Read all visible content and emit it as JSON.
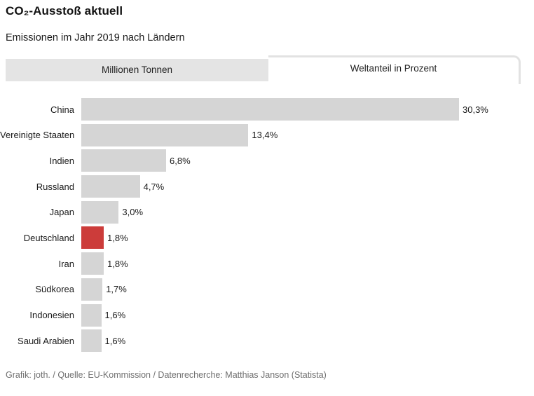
{
  "header": {
    "title": "CO₂-Ausstoß aktuell",
    "subtitle": "Emissionen im Jahr 2019 nach Ländern"
  },
  "tabs": [
    {
      "label": "Millionen Tonnen",
      "active": false
    },
    {
      "label": "Weltanteil in Prozent",
      "active": true
    }
  ],
  "chart_data": {
    "type": "bar",
    "orientation": "horizontal",
    "categories": [
      "China",
      "Vereinigte Staaten",
      "Indien",
      "Russland",
      "Japan",
      "Deutschland",
      "Iran",
      "Südkorea",
      "Indonesien",
      "Saudi Arabien"
    ],
    "values": [
      30.3,
      13.4,
      6.8,
      4.7,
      3.0,
      1.8,
      1.8,
      1.7,
      1.6,
      1.6
    ],
    "value_labels": [
      "30,3%",
      "13,4%",
      "6,8%",
      "4,7%",
      "3,0%",
      "1,8%",
      "1,8%",
      "1,7%",
      "1,6%",
      "1,6%"
    ],
    "unit": "Prozent",
    "highlight_category": "Deutschland",
    "colors": {
      "bar": "#d5d5d5",
      "highlight": "#cc3c3a"
    },
    "xlim": [
      0,
      30.3
    ],
    "grid": false,
    "legend": false
  },
  "footer": {
    "credit": "Grafik: joth. / Quelle: EU-Kommission / Datenrecherche: Matthias Janson (Statista)"
  }
}
